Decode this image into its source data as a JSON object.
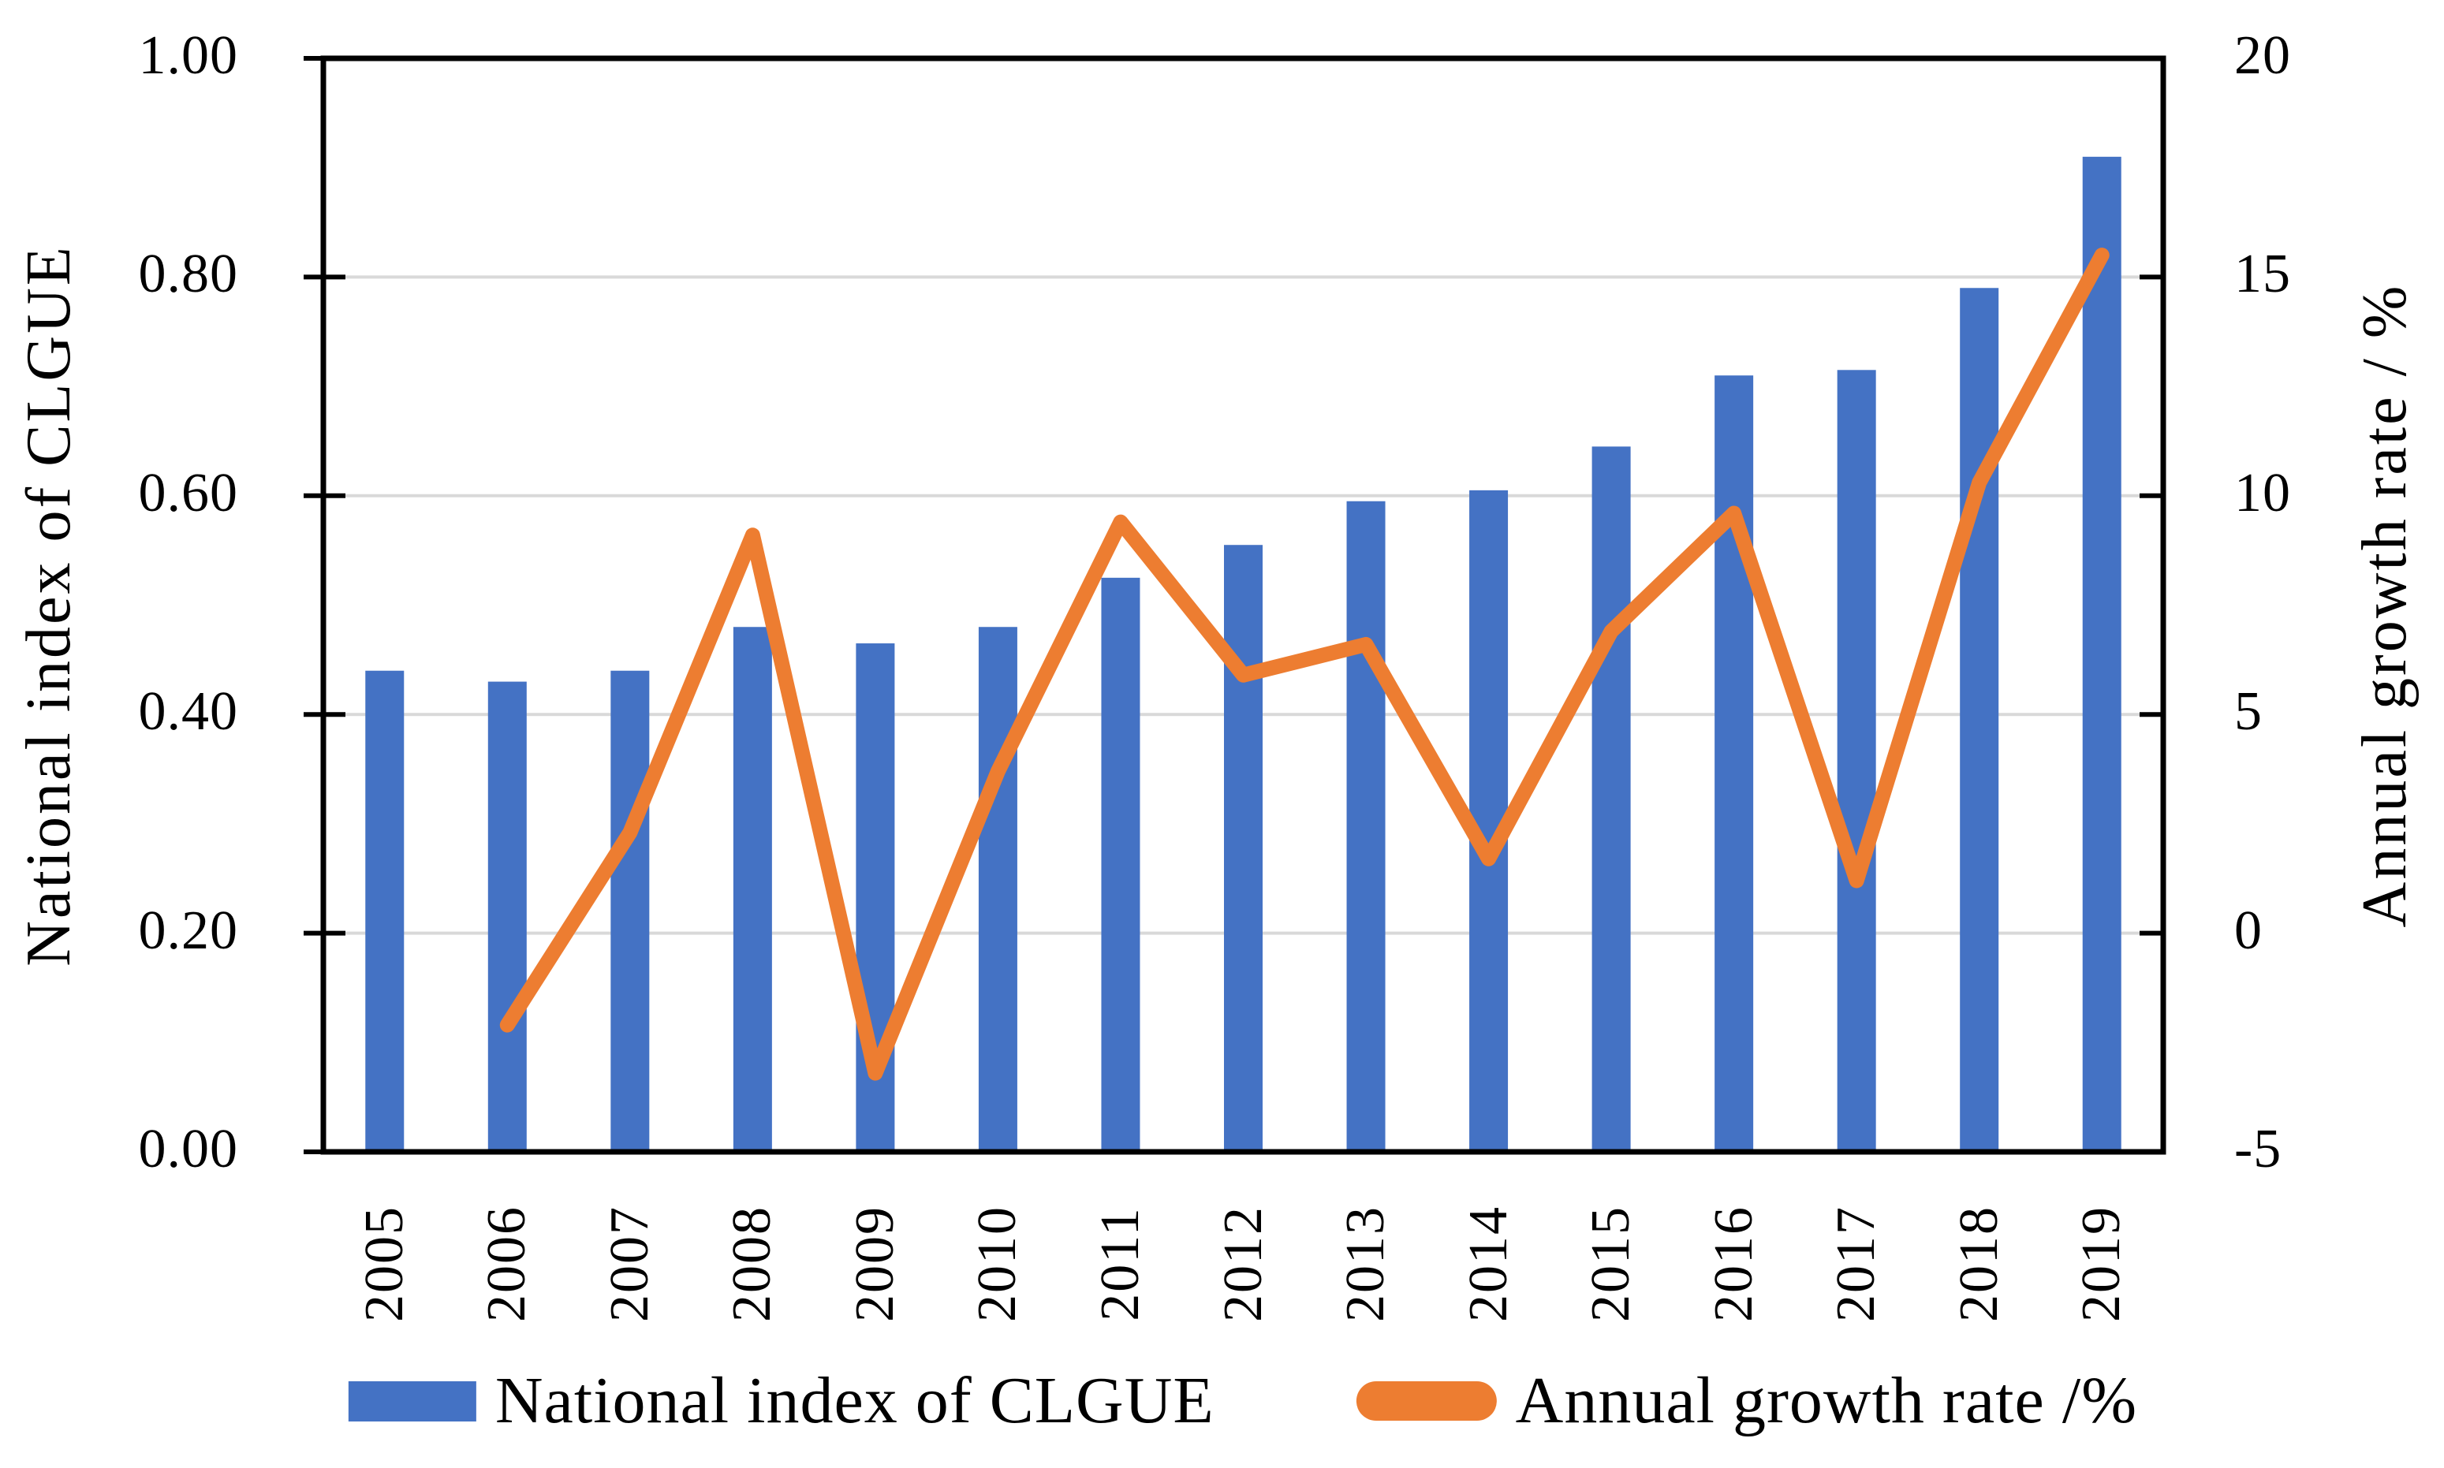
{
  "chart_data": {
    "type": "combo-bar-line",
    "title": "",
    "categories": [
      "2005",
      "2006",
      "2007",
      "2008",
      "2009",
      "2010",
      "2011",
      "2012",
      "2013",
      "2014",
      "2015",
      "2016",
      "2017",
      "2018",
      "2019"
    ],
    "series": [
      {
        "name": "National index of CLGUE",
        "kind": "bar",
        "axis": "left",
        "color": "#4472C4",
        "values": [
          0.44,
          0.43,
          0.44,
          0.48,
          0.465,
          0.48,
          0.525,
          0.555,
          0.595,
          0.605,
          0.645,
          0.71,
          0.715,
          0.79,
          0.91
        ]
      },
      {
        "name": "Annual growth rate /%",
        "kind": "line",
        "axis": "right",
        "color": "#ED7D31",
        "values": [
          null,
          -2.1,
          2.3,
          9.1,
          -3.2,
          3.7,
          9.4,
          5.9,
          6.6,
          1.7,
          6.9,
          9.6,
          1.2,
          10.3,
          15.5
        ]
      }
    ],
    "left_axis": {
      "title": "National index of CLGUE",
      "min": 0,
      "max": 1,
      "step": 0.2,
      "tick_labels": [
        "0.00",
        "0.20",
        "0.40",
        "0.60",
        "0.80",
        "1.00"
      ]
    },
    "right_axis": {
      "title": "Annual growth rate / %",
      "min": -5,
      "max": 20,
      "step": 5,
      "tick_labels": [
        "-5",
        "0",
        "5",
        "10",
        "15",
        "20"
      ]
    },
    "grid": true,
    "legend_position": "bottom",
    "colors": {
      "bar": "#4472C4",
      "line": "#ED7D31",
      "gridline": "#D9D9D9",
      "frame": "#000000",
      "background": "#FFFFFF"
    }
  },
  "legend": {
    "items": [
      {
        "label": "National index of CLGUE",
        "swatch": "bar"
      },
      {
        "label": "Annual growth rate /%",
        "swatch": "line"
      }
    ]
  }
}
